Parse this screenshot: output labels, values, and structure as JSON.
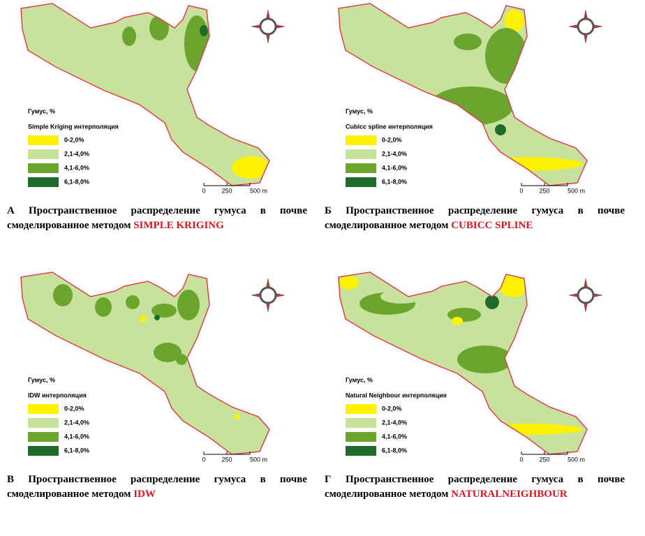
{
  "panels": [
    {
      "legend_title": "Гумус, %",
      "method": "Simple Kriging интерполяция",
      "legend": [
        {
          "label": "0-2,0%",
          "color": "#fff200"
        },
        {
          "label": "2,1-4,0%",
          "color": "#c6e29c"
        },
        {
          "label": "4,1-6,0%",
          "color": "#6aa62d"
        },
        {
          "label": "6,1-8,0%",
          "color": "#1e6b2a"
        }
      ],
      "scale": [
        "0",
        "250",
        "500 m"
      ],
      "caption": "А Пространственное распределение гумуса в почве смоделированное методом",
      "caption_method": "SIMPLE KRIGING"
    },
    {
      "legend_title": "Гумус, %",
      "method": "Cubicc spline интерполяция",
      "legend": [
        {
          "label": "0-2,0%",
          "color": "#fff200"
        },
        {
          "label": "2,1-4,0%",
          "color": "#c6e29c"
        },
        {
          "label": "4,1-6,0%",
          "color": "#6aa62d"
        },
        {
          "label": "6,1-8,0%",
          "color": "#1e6b2a"
        }
      ],
      "scale": [
        "0",
        "250",
        "500 m"
      ],
      "caption": "Б Пространственное распределение гумуса в почве смоделированное методом",
      "caption_method": "CUBICC SPLINE"
    },
    {
      "legend_title": "Гумус, %",
      "method": "IDW интерполяция",
      "legend": [
        {
          "label": "0-2,0%",
          "color": "#fff200"
        },
        {
          "label": "2,1-4,0%",
          "color": "#c6e29c"
        },
        {
          "label": "4,1-6,0%",
          "color": "#6aa62d"
        },
        {
          "label": "6,1-8,0%",
          "color": "#1e6b2a"
        }
      ],
      "scale": [
        "0",
        "250",
        "500 m"
      ],
      "caption": "В Пространственное распределение гумуса в почве смоделированное методом",
      "caption_method": "IDW"
    },
    {
      "legend_title": "Гумус, %",
      "method": "Natural Neighbour интерполяция",
      "legend": [
        {
          "label": "0-2,0%",
          "color": "#fff200"
        },
        {
          "label": "2,1-4,0%",
          "color": "#c6e29c"
        },
        {
          "label": "4,1-6,0%",
          "color": "#6aa62d"
        },
        {
          "label": "6,1-8,0%",
          "color": "#1e6b2a"
        }
      ],
      "scale": [
        "0",
        "250",
        "500 m"
      ],
      "caption": "Г Пространственное распределение гумуса в почве смоделированное методом",
      "caption_method": "NATURALNEIGHBOUR"
    }
  ]
}
